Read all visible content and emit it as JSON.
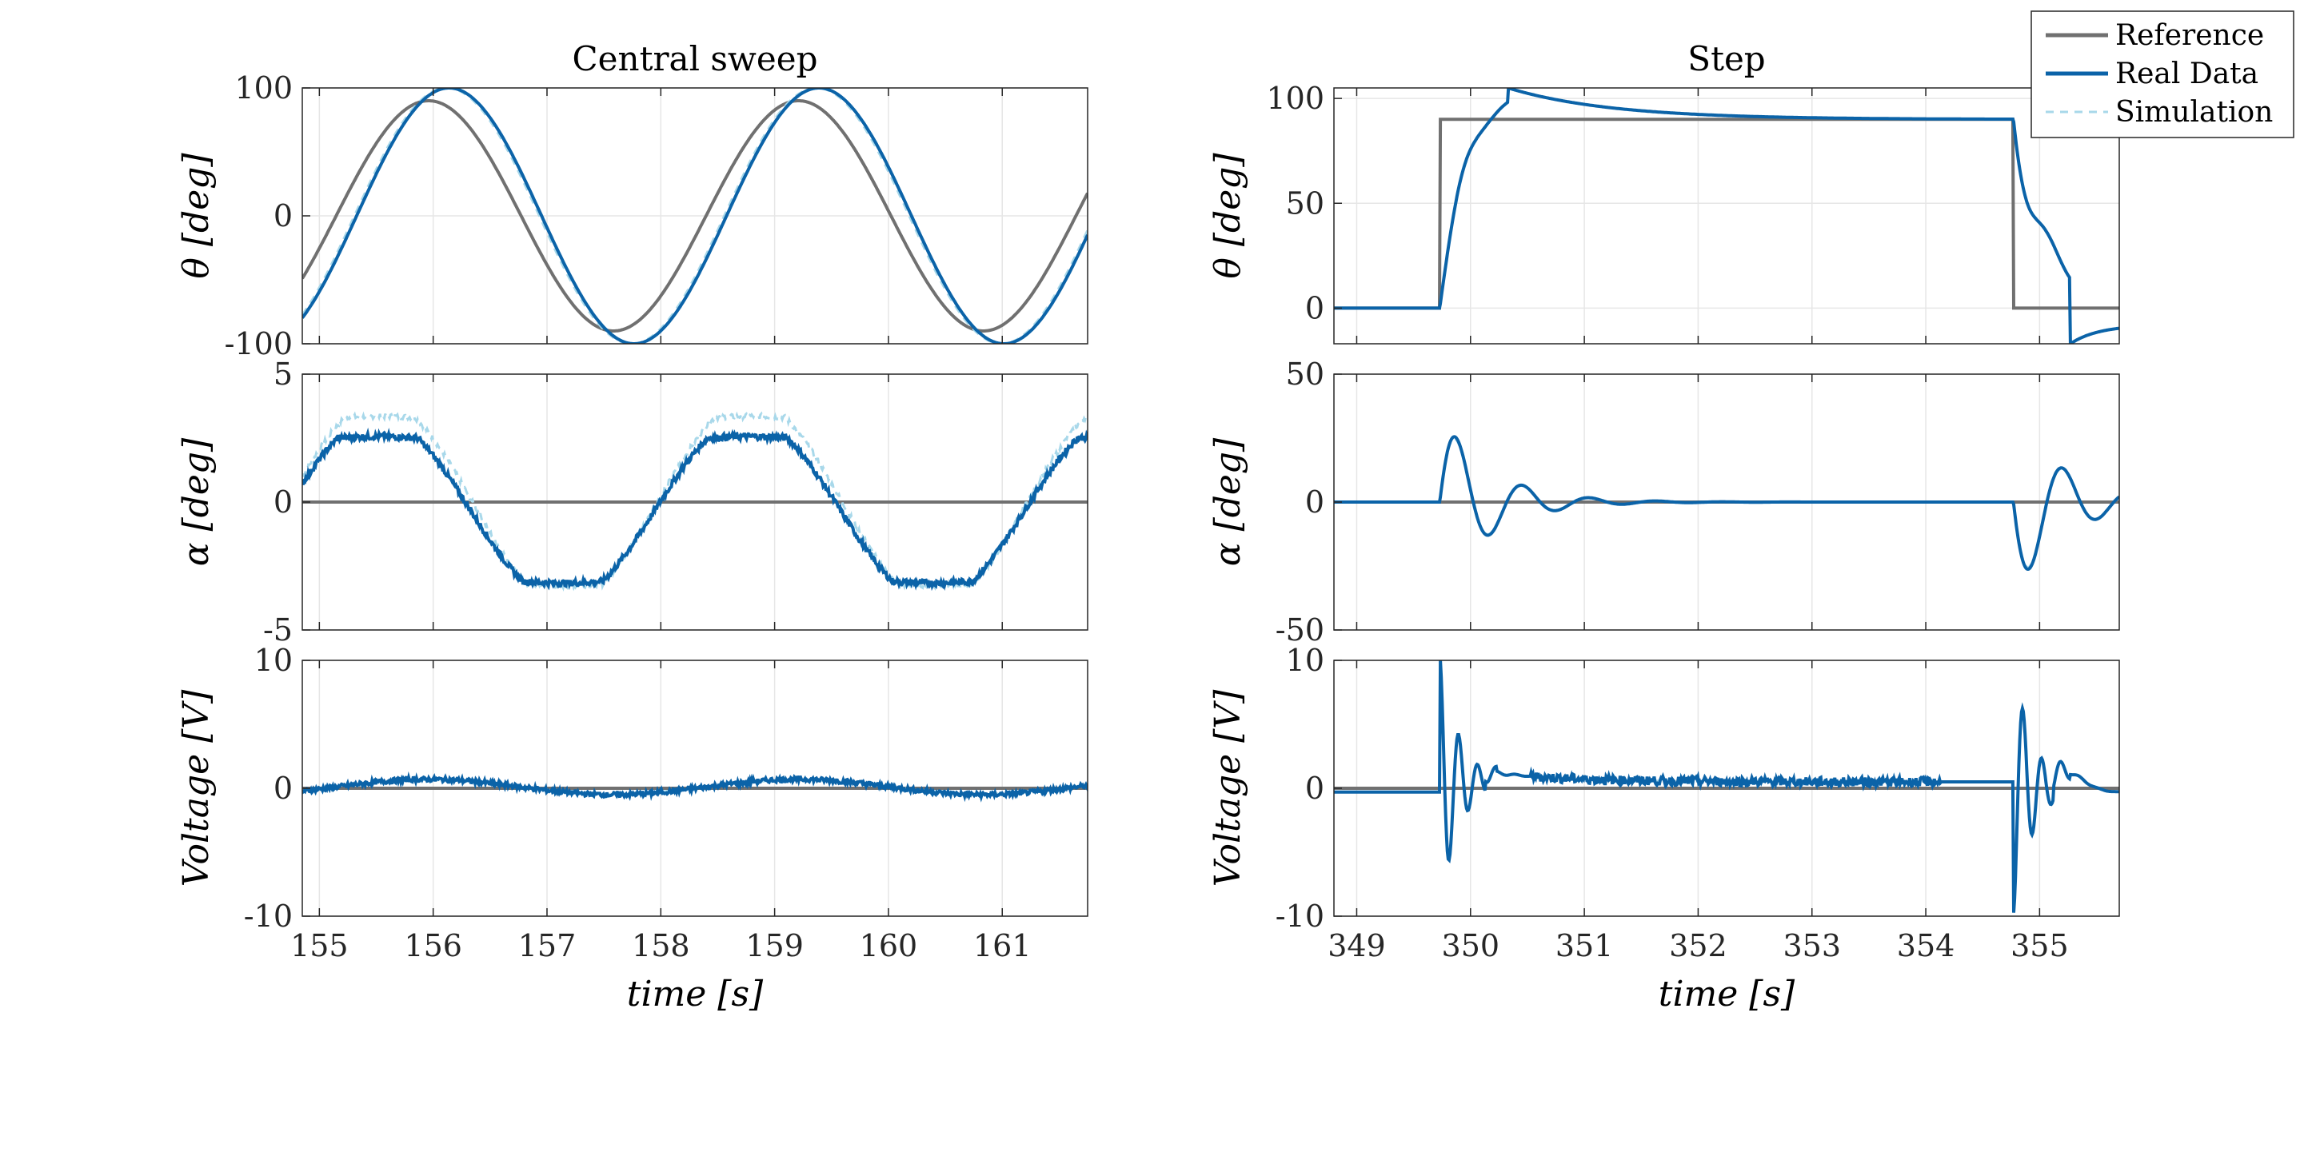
{
  "colors": {
    "reference": "#707070",
    "real": "#0b63a8",
    "simulation": "#a8d8ea",
    "axis": "#262626",
    "grid": "#e6e6e6"
  },
  "legend": {
    "placement": "top-right",
    "entries": [
      "Reference",
      "Real Data",
      "Simulation"
    ]
  },
  "chart_data": [
    {
      "type": "line",
      "title": "Central sweep",
      "xlabel": "",
      "ylabel": "θ [deg]",
      "xlim": [
        154.85,
        161.75
      ],
      "ylim": [
        -100,
        100
      ],
      "xticks": [
        155,
        156,
        157,
        158,
        159,
        160,
        161
      ],
      "yticks": [
        -100,
        0,
        100
      ],
      "signals": [
        {
          "kind": "sine",
          "amp": 90,
          "period": 3.25,
          "phase": 155.96,
          "offset": 0
        },
        {
          "kind": "sine",
          "amp": 100,
          "period": 3.25,
          "phase": 156.14,
          "offset": 0
        },
        {
          "kind": "sine",
          "amp": 100,
          "period": 3.25,
          "phase": 156.12,
          "offset": 0
        }
      ]
    },
    {
      "type": "line",
      "title": "",
      "xlabel": "",
      "ylabel": "α [deg]",
      "xlim": [
        154.85,
        161.75
      ],
      "ylim": [
        -5,
        5
      ],
      "xticks": [
        155,
        156,
        157,
        158,
        159,
        160,
        161
      ],
      "yticks": [
        -5,
        0,
        5
      ],
      "signals": [
        {
          "kind": "const",
          "value": 0
        },
        {
          "kind": "sinesat",
          "amp": 3.6,
          "period": 3.25,
          "phase": 154.7,
          "offset": -0.3,
          "satPos": 2.5,
          "satNeg": -3.1,
          "noise": 0.12
        },
        {
          "kind": "sinesat",
          "amp": 4.0,
          "period": 3.25,
          "phase": 154.72,
          "offset": 0.0,
          "satPos": 3.3,
          "satNeg": -3.2,
          "noise": 0.1
        }
      ]
    },
    {
      "type": "line",
      "title": "",
      "xlabel": "time [s]",
      "ylabel": "Voltage [V]",
      "xlim": [
        154.85,
        161.75
      ],
      "ylim": [
        -10,
        10
      ],
      "xticks": [
        155,
        156,
        157,
        158,
        159,
        160,
        161
      ],
      "yticks": [
        -10,
        0,
        10
      ],
      "signals": [
        {
          "kind": "const",
          "value": 0
        },
        {
          "kind": "sine",
          "amp": 0.6,
          "period": 3.25,
          "phase": 155.96,
          "offset": 0.1,
          "noise": 0.18
        },
        {
          "kind": "sine",
          "amp": 0.55,
          "period": 3.25,
          "phase": 155.96,
          "offset": 0.1
        }
      ]
    },
    {
      "type": "line",
      "title": "Step",
      "xlabel": "",
      "ylabel": "θ [deg]",
      "xlim": [
        348.8,
        355.7
      ],
      "ylim": [
        -17,
        105
      ],
      "xticks": [
        349,
        350,
        351,
        352,
        353,
        354,
        355
      ],
      "yticks": [
        0,
        50,
        100
      ],
      "signals": [
        {
          "kind": "pulse",
          "t0": 349.73,
          "t1": 354.77,
          "base": 0,
          "high": 90
        },
        {
          "kind": "stepresp",
          "t0": 349.73,
          "t1": 354.77,
          "high": 90,
          "peak": 105,
          "final": 90,
          "undershoot": -17,
          "end": -8
        },
        {
          "kind": "stepresp",
          "t0": 349.73,
          "t1": 354.77,
          "high": 90,
          "peak": 105,
          "final": 90,
          "undershoot": -17,
          "end": -8
        }
      ]
    },
    {
      "type": "line",
      "title": "",
      "xlabel": "",
      "ylabel": "α [deg]",
      "xlim": [
        348.8,
        355.7
      ],
      "ylim": [
        -50,
        50
      ],
      "xticks": [
        349,
        350,
        351,
        352,
        353,
        354,
        355
      ],
      "yticks": [
        -50,
        0,
        50
      ],
      "signals": [
        {
          "kind": "const",
          "value": 0
        },
        {
          "kind": "dampedpair",
          "t0": 349.73,
          "t1": 354.77,
          "amp1": 35,
          "amp2": -36,
          "freq": 1.7,
          "decay": 2.3
        },
        {
          "kind": "dampedpair",
          "t0": 349.73,
          "t1": 354.77,
          "amp1": 34,
          "amp2": -35,
          "freq": 1.7,
          "decay": 2.3
        }
      ]
    },
    {
      "type": "line",
      "title": "",
      "xlabel": "time [s]",
      "ylabel": "Voltage [V]",
      "xlim": [
        348.8,
        355.7
      ],
      "ylim": [
        -10,
        10
      ],
      "xticks": [
        349,
        350,
        351,
        352,
        353,
        354,
        355
      ],
      "yticks": [
        -10,
        0,
        10
      ],
      "signals": [
        {
          "kind": "const",
          "value": 0
        },
        {
          "kind": "voltspike",
          "t0": 349.73,
          "t1": 354.77,
          "noise": 0.35
        },
        {
          "kind": "voltspike",
          "t0": 349.73,
          "t1": 354.77,
          "noise": 0
        }
      ]
    }
  ]
}
